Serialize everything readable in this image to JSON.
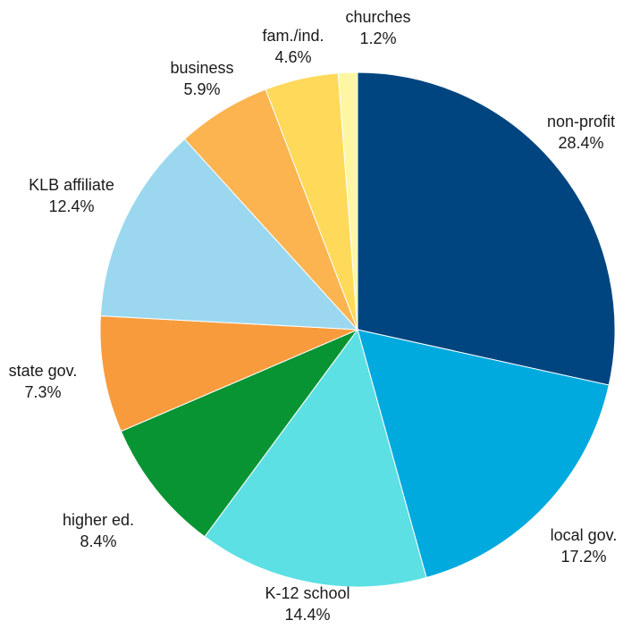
{
  "chart_data": {
    "type": "pie",
    "title": "",
    "start_angle_deg": 0,
    "direction": "clockwise",
    "slices": [
      {
        "label": "non-profit",
        "value": 28.4,
        "display": "28.4%",
        "color": "#00457f"
      },
      {
        "label": "local gov.",
        "value": 17.2,
        "display": "17.2%",
        "color": "#00a9de"
      },
      {
        "label": "K-12 school",
        "value": 14.4,
        "display": "14.4%",
        "color": "#5ce0e4"
      },
      {
        "label": "higher ed.",
        "value": 8.4,
        "display": "8.4%",
        "color": "#089433"
      },
      {
        "label": "state gov.",
        "value": 7.3,
        "display": "7.3%",
        "color": "#f89b3c"
      },
      {
        "label": "KLB affiliate",
        "value": 12.4,
        "display": "12.4%",
        "color": "#9bd8f0"
      },
      {
        "label": "business",
        "value": 5.9,
        "display": "5.9%",
        "color": "#fbb450"
      },
      {
        "label": "fam./ind.",
        "value": 4.6,
        "display": "4.6%",
        "color": "#ffd95a"
      },
      {
        "label": "churches",
        "value": 1.2,
        "display": "1.2%",
        "color": "#fff6a3"
      }
    ]
  }
}
